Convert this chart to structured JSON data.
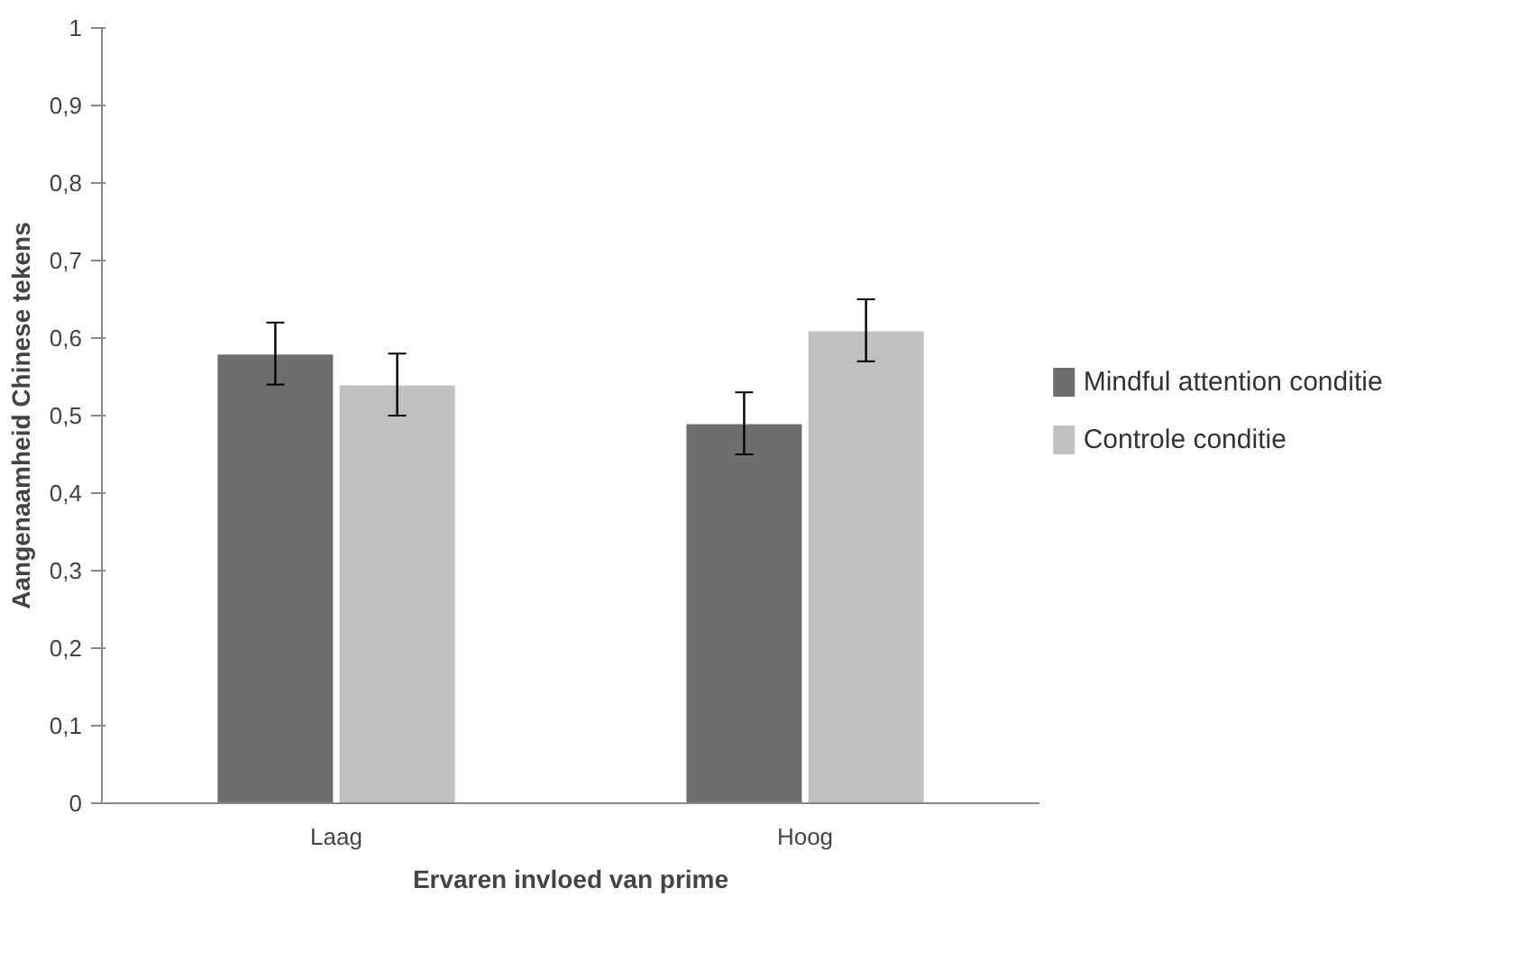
{
  "chart_data": {
    "type": "bar",
    "xlabel": "Ervaren invloed van prime",
    "ylabel": "Aangenaamheid Chinese tekens",
    "categories": [
      "Laag",
      "Hoog"
    ],
    "series": [
      {
        "name": "Mindful attention conditie",
        "color": "#6e6e6e",
        "values": [
          0.58,
          0.49
        ],
        "errors": [
          0.04,
          0.04
        ]
      },
      {
        "name": "Controle conditie",
        "color": "#c0c0c0",
        "values": [
          0.54,
          0.61
        ],
        "errors": [
          0.04,
          0.04
        ]
      }
    ],
    "ylim": [
      0,
      1
    ],
    "yticks": [
      0,
      {
        "value": 0.1,
        "label": "0,1"
      },
      {
        "value": 0.2,
        "label": "0,2"
      },
      {
        "value": 0.3,
        "label": "0,3"
      },
      {
        "value": 0.4,
        "label": "0,4"
      },
      {
        "value": 0.5,
        "label": "0,5"
      },
      {
        "value": 0.6,
        "label": "0,6"
      },
      {
        "value": 0.7,
        "label": "0,7"
      },
      {
        "value": 0.8,
        "label": "0,8"
      },
      {
        "value": 0.9,
        "label": "0,9"
      },
      1
    ],
    "grid": false,
    "legend": "right"
  }
}
